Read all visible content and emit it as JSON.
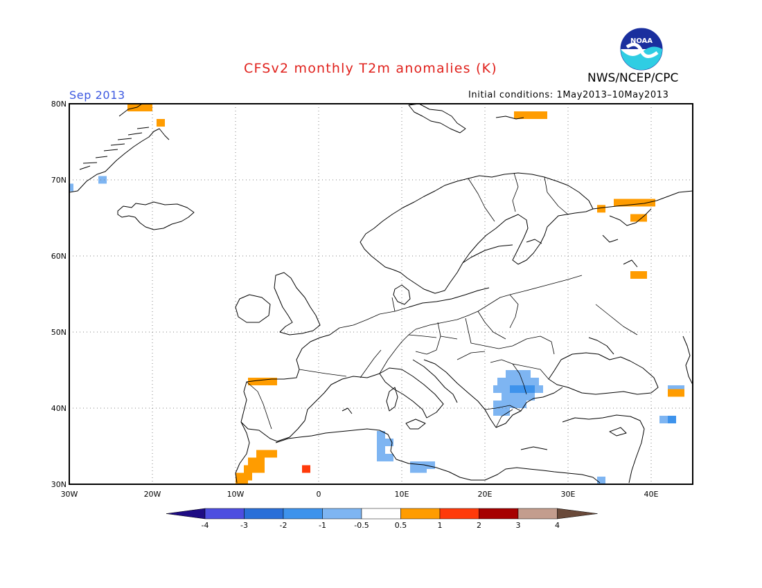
{
  "header": {
    "title": "CFSv2 monthly T2m anomalies (K)",
    "month": "Sep 2013",
    "initial_conditions": "Initial conditions: 1May2013–10May2013",
    "agency": "NWS/NCEP/CPC",
    "logo_text": "NOAA"
  },
  "colors": {
    "title": "#e0201b",
    "month": "#3b57e0",
    "frame": "#000000",
    "grid": "#808080",
    "coast": "#000000",
    "logo_blue": "#1a2f9e",
    "logo_cyan": "#2fcde3"
  },
  "map": {
    "projection": "equirectangular",
    "lon_range": [
      -30,
      45
    ],
    "lat_range": [
      30,
      80
    ],
    "lon_ticks": [
      -30,
      -20,
      -10,
      0,
      10,
      20,
      30,
      40
    ],
    "lon_tick_labels": [
      "30W",
      "20W",
      "10W",
      "0",
      "10E",
      "20E",
      "30E",
      "40E"
    ],
    "lat_ticks": [
      30,
      40,
      50,
      60,
      70,
      80
    ],
    "lat_tick_labels": [
      "30N",
      "40N",
      "50N",
      "60N",
      "70N",
      "80N"
    ],
    "grid": "dotted"
  },
  "colorbar": {
    "boundaries": [
      "-4",
      "-3",
      "-2",
      "-1",
      "-0.5",
      "0.5",
      "1",
      "2",
      "3",
      "4"
    ],
    "colors": [
      "#1e0c84",
      "#4d4ee0",
      "#2a6fd8",
      "#3e93ec",
      "#7eb5f2",
      "#ffffff",
      "#ff9c00",
      "#ff3a0a",
      "#a60000",
      "#c39d8e",
      "#6a4a3a"
    ]
  },
  "anomaly_cells": [
    {
      "lon": -23,
      "lat": 79,
      "w": 3,
      "h": 1,
      "class": "0.5-1"
    },
    {
      "lon": -19.5,
      "lat": 77,
      "w": 1,
      "h": 1,
      "class": "0.5-1"
    },
    {
      "lon": -30,
      "lat": 68.5,
      "w": 0.5,
      "h": 1,
      "class": "-1 to -0.5"
    },
    {
      "lon": -26.5,
      "lat": 69.5,
      "w": 1,
      "h": 1,
      "class": "-1 to -0.5"
    },
    {
      "lon": 23.5,
      "lat": 78,
      "w": 4,
      "h": 1,
      "class": "0.5-1"
    },
    {
      "lon": 35.5,
      "lat": 66.5,
      "w": 5,
      "h": 1,
      "class": "0.5-1"
    },
    {
      "lon": 33.5,
      "lat": 65.7,
      "w": 1,
      "h": 1,
      "class": "0.5-1"
    },
    {
      "lon": 37.5,
      "lat": 64.5,
      "w": 2,
      "h": 1,
      "class": "0.5-1"
    },
    {
      "lon": 37.5,
      "lat": 57,
      "w": 2,
      "h": 1,
      "class": "0.5-1"
    },
    {
      "lon": -8.5,
      "lat": 43,
      "w": 3.5,
      "h": 1,
      "class": "0.5-1"
    },
    {
      "lon": -7.5,
      "lat": 33.5,
      "w": 2.5,
      "h": 1,
      "class": "0.5-1"
    },
    {
      "lon": -8.5,
      "lat": 32.5,
      "w": 2,
      "h": 1,
      "class": "0.5-1"
    },
    {
      "lon": -9,
      "lat": 31.5,
      "w": 2.5,
      "h": 1,
      "class": "0.5-1"
    },
    {
      "lon": -10,
      "lat": 30.5,
      "w": 2,
      "h": 1,
      "class": "0.5-1"
    },
    {
      "lon": -10,
      "lat": 30,
      "w": 1.5,
      "h": 0.5,
      "class": "0.5-1"
    },
    {
      "lon": -2,
      "lat": 31.5,
      "w": 1,
      "h": 1,
      "class": "1-2"
    },
    {
      "lon": 7,
      "lat": 33,
      "w": 1,
      "h": 4,
      "class": "-1 to -0.5"
    },
    {
      "lon": 8,
      "lat": 33,
      "w": 1,
      "h": 1,
      "class": "-1 to -0.5"
    },
    {
      "lon": 8,
      "lat": 35,
      "w": 1,
      "h": 1,
      "class": "-1 to -0.5"
    },
    {
      "lon": 11,
      "lat": 31.5,
      "w": 2,
      "h": 1.5,
      "class": "-1 to -0.5"
    },
    {
      "lon": 13,
      "lat": 32,
      "w": 1,
      "h": 1,
      "class": "-1 to -0.5"
    },
    {
      "lon": 22.5,
      "lat": 44,
      "w": 3,
      "h": 1,
      "class": "-1 to -0.5"
    },
    {
      "lon": 21.5,
      "lat": 43,
      "w": 5,
      "h": 1,
      "class": "-1 to -0.5"
    },
    {
      "lon": 21,
      "lat": 42,
      "w": 6,
      "h": 1,
      "class": "-1 to -0.5"
    },
    {
      "lon": 23,
      "lat": 42,
      "w": 3,
      "h": 1,
      "class": "-2 to -1"
    },
    {
      "lon": 22,
      "lat": 41,
      "w": 4,
      "h": 1,
      "class": "-1 to -0.5"
    },
    {
      "lon": 21,
      "lat": 40,
      "w": 4,
      "h": 1,
      "class": "-1 to -0.5"
    },
    {
      "lon": 21,
      "lat": 39,
      "w": 2,
      "h": 1,
      "class": "-1 to -0.5"
    },
    {
      "lon": 42,
      "lat": 42,
      "w": 2,
      "h": 1,
      "class": "-1 to -0.5"
    },
    {
      "lon": 42,
      "lat": 41.5,
      "w": 2,
      "h": 1,
      "class": "0.5-1"
    },
    {
      "lon": 41,
      "lat": 38,
      "w": 1,
      "h": 1,
      "class": "-1 to -0.5"
    },
    {
      "lon": 42,
      "lat": 38,
      "w": 1,
      "h": 1,
      "class": "-2 to -1"
    },
    {
      "lon": 33.5,
      "lat": 30,
      "w": 1,
      "h": 1,
      "class": "-1 to -0.5"
    }
  ]
}
